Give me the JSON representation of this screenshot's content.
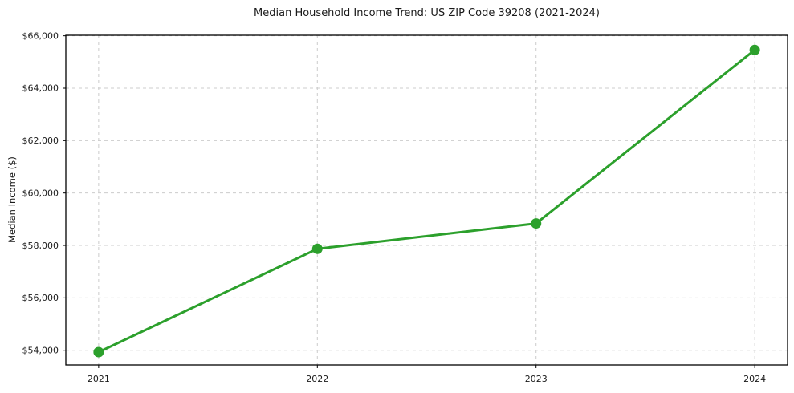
{
  "figure": {
    "background": "#ffffff"
  },
  "chart_data": {
    "type": "line",
    "title": "Median Household Income Trend: US ZIP Code 39208 (2021-2024)",
    "xlabel": "",
    "ylabel": "Median Income ($)",
    "x": [
      2021,
      2022,
      2023,
      2024
    ],
    "series": [
      {
        "name": "Median Household Income",
        "values": [
          53930,
          57870,
          58840,
          65460
        ]
      }
    ],
    "xtick_labels": [
      "2021",
      "2022",
      "2023",
      "2024"
    ],
    "ytick_values": [
      54000,
      56000,
      58000,
      60000,
      62000,
      64000,
      66000
    ],
    "ytick_labels": [
      "$54,000",
      "$56,000",
      "$58,000",
      "$60,000",
      "$62,000",
      "$64,000",
      "$66,000"
    ],
    "xlim": [
      2020.85,
      2024.15
    ],
    "ylim": [
      53440,
      66020
    ],
    "grid": true,
    "grid_style": "dashed",
    "legend": false,
    "line_color": "#2ca02c",
    "marker": "circle",
    "marker_color": "#2ca02c",
    "grid_color": "#cccccc",
    "spine_color": "#000000",
    "text_color": "#1a1a1a"
  }
}
